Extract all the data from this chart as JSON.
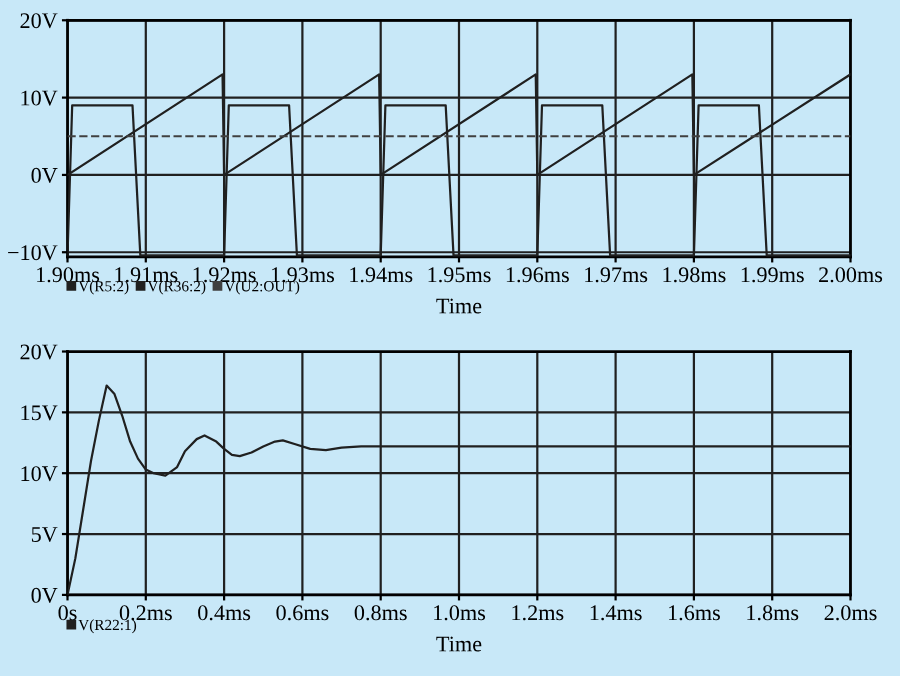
{
  "chart_data": [
    {
      "type": "line",
      "xlabel": "Time",
      "xlim": [
        1.9,
        2.0
      ],
      "ylim": [
        -10.6,
        20
      ],
      "xticks": [
        {
          "value": 1.9,
          "label": "1.90ms"
        },
        {
          "value": 1.91,
          "label": "1.91ms"
        },
        {
          "value": 1.92,
          "label": "1.92ms"
        },
        {
          "value": 1.93,
          "label": "1.93ms"
        },
        {
          "value": 1.94,
          "label": "1.94ms"
        },
        {
          "value": 1.95,
          "label": "1.95ms"
        },
        {
          "value": 1.96,
          "label": "1.96ms"
        },
        {
          "value": 1.97,
          "label": "1.97ms"
        },
        {
          "value": 1.98,
          "label": "1.98ms"
        },
        {
          "value": 1.99,
          "label": "1.99ms"
        },
        {
          "value": 2.0,
          "label": "2.00ms"
        }
      ],
      "yticks": [
        {
          "value": -10,
          "label": "−10V"
        },
        {
          "value": 0,
          "label": "0V"
        },
        {
          "value": 10,
          "label": "10V"
        },
        {
          "value": 20,
          "label": "20V"
        }
      ],
      "grid": true,
      "legend": "bottom left",
      "marker": "none",
      "series": [
        {
          "name": "V(R5:2)",
          "color": "#202020",
          "line_style": "solid",
          "x": [
            1.9,
            1.9006,
            1.9083,
            1.9093,
            1.92,
            1.9206,
            1.9283,
            1.9293,
            1.94,
            1.9406,
            1.9483,
            1.9493,
            1.96,
            1.9606,
            1.9683,
            1.9693,
            1.98,
            1.9806,
            1.9883,
            1.9893,
            2.0
          ],
          "values": [
            -10.4,
            9,
            9,
            -10.4,
            -10.4,
            9,
            9,
            -10.4,
            -10.4,
            9,
            9,
            -10.4,
            -10.4,
            9,
            9,
            -10.4,
            -10.4,
            9,
            9,
            -10.4,
            -10.4
          ]
        },
        {
          "name": "V(R36:2)",
          "color": "#202020",
          "line_style": "solid",
          "x": [
            1.9,
            1.9198,
            1.92,
            1.9398,
            1.94,
            1.9598,
            1.96,
            1.9798,
            1.98,
            2.0
          ],
          "values": [
            0,
            13,
            0,
            13,
            0,
            13,
            0,
            13,
            0,
            13
          ]
        },
        {
          "name": "V(U2:OUT)",
          "color": "#404040",
          "line_style": "dashed",
          "x": [
            1.9,
            2.0
          ],
          "values": [
            5,
            5
          ]
        }
      ]
    },
    {
      "type": "line",
      "xlabel": "Time",
      "xlim": [
        0,
        2.0
      ],
      "ylim": [
        0,
        20
      ],
      "xticks": [
        {
          "value": 0,
          "label": "0s"
        },
        {
          "value": 0.2,
          "label": "0.2ms"
        },
        {
          "value": 0.4,
          "label": "0.4ms"
        },
        {
          "value": 0.6,
          "label": "0.6ms"
        },
        {
          "value": 0.8,
          "label": "0.8ms"
        },
        {
          "value": 1.0,
          "label": "1.0ms"
        },
        {
          "value": 1.2,
          "label": "1.2ms"
        },
        {
          "value": 1.4,
          "label": "1.4ms"
        },
        {
          "value": 1.6,
          "label": "1.6ms"
        },
        {
          "value": 1.8,
          "label": "1.8ms"
        },
        {
          "value": 2.0,
          "label": "2.0ms"
        }
      ],
      "yticks": [
        {
          "value": 0,
          "label": "0V"
        },
        {
          "value": 5,
          "label": "5V"
        },
        {
          "value": 10,
          "label": "10V"
        },
        {
          "value": 15,
          "label": "15V"
        },
        {
          "value": 20,
          "label": "20V"
        }
      ],
      "grid": true,
      "legend": "bottom left",
      "marker": "none",
      "series": [
        {
          "name": "V(R22:1)",
          "color": "#202020",
          "line_style": "solid",
          "x": [
            0,
            0.02,
            0.04,
            0.06,
            0.08,
            0.1,
            0.12,
            0.14,
            0.16,
            0.18,
            0.2,
            0.22,
            0.25,
            0.28,
            0.3,
            0.33,
            0.35,
            0.38,
            0.4,
            0.42,
            0.44,
            0.47,
            0.5,
            0.53,
            0.55,
            0.58,
            0.62,
            0.66,
            0.7,
            0.75,
            0.8,
            1.0,
            1.2,
            1.4,
            1.6,
            1.8,
            2.0
          ],
          "values": [
            0,
            3,
            7,
            11,
            14.3,
            17.2,
            16.5,
            14.7,
            12.6,
            11.2,
            10.3,
            10.0,
            9.8,
            10.5,
            11.8,
            12.8,
            13.1,
            12.6,
            12.0,
            11.5,
            11.4,
            11.7,
            12.2,
            12.6,
            12.7,
            12.4,
            12.0,
            11.9,
            12.1,
            12.2,
            12.2,
            12.2,
            12.2,
            12.2,
            12.2,
            12.2,
            12.2
          ]
        }
      ]
    }
  ]
}
